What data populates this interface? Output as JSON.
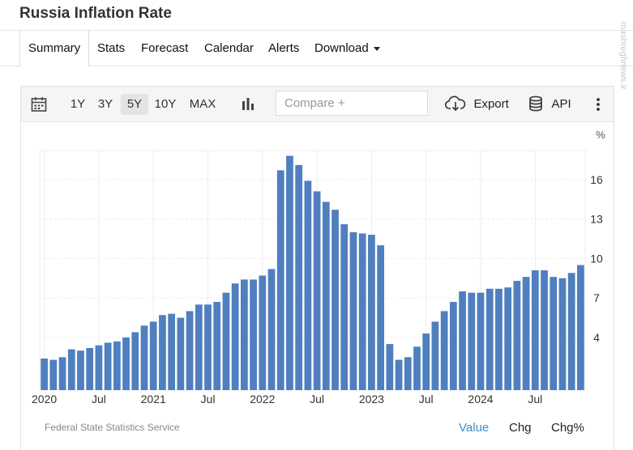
{
  "page": {
    "title": "Russia Inflation Rate",
    "watermark": "mashreghnews.ir"
  },
  "tabs": [
    {
      "label": "Summary",
      "active": true
    },
    {
      "label": "Stats"
    },
    {
      "label": "Forecast"
    },
    {
      "label": "Calendar"
    },
    {
      "label": "Alerts"
    },
    {
      "label": "Download",
      "dropdown": true
    }
  ],
  "toolbar": {
    "ranges": [
      "1Y",
      "3Y",
      "5Y",
      "10Y",
      "MAX"
    ],
    "selected_range": "5Y",
    "compare_placeholder": "Compare +",
    "export_label": "Export",
    "api_label": "API",
    "icons": [
      "calendar-icon",
      "bar-chart-icon",
      "cloud-download-icon",
      "database-icon",
      "more-vertical-icon"
    ]
  },
  "footer": {
    "source": "Federal State Statistics Service",
    "modes": [
      "Value",
      "Chg",
      "Chg%"
    ],
    "active_mode": "Value",
    "active_color": "#3c8dcb"
  },
  "chart_data": {
    "type": "bar",
    "unit_label": "%",
    "bar_color": "#4f7fbf",
    "ylim": [
      0,
      18.2
    ],
    "y_ticks": [
      4,
      7,
      10,
      13,
      16
    ],
    "x_tick_labels": [
      {
        "label": "2020",
        "index": 0
      },
      {
        "label": "Jul",
        "index": 6
      },
      {
        "label": "2021",
        "index": 12
      },
      {
        "label": "Jul",
        "index": 18
      },
      {
        "label": "2022",
        "index": 24
      },
      {
        "label": "Jul",
        "index": 30
      },
      {
        "label": "2023",
        "index": 36
      },
      {
        "label": "Jul",
        "index": 42
      },
      {
        "label": "2024",
        "index": 48
      },
      {
        "label": "Jul",
        "index": 54
      }
    ],
    "categories": [
      "2020-01",
      "2020-02",
      "2020-03",
      "2020-04",
      "2020-05",
      "2020-06",
      "2020-07",
      "2020-08",
      "2020-09",
      "2020-10",
      "2020-11",
      "2020-12",
      "2021-01",
      "2021-02",
      "2021-03",
      "2021-04",
      "2021-05",
      "2021-06",
      "2021-07",
      "2021-08",
      "2021-09",
      "2021-10",
      "2021-11",
      "2021-12",
      "2022-01",
      "2022-02",
      "2022-03",
      "2022-04",
      "2022-05",
      "2022-06",
      "2022-07",
      "2022-08",
      "2022-09",
      "2022-10",
      "2022-11",
      "2022-12",
      "2023-01",
      "2023-02",
      "2023-03",
      "2023-04",
      "2023-05",
      "2023-06",
      "2023-07",
      "2023-08",
      "2023-09",
      "2023-10",
      "2023-11",
      "2023-12",
      "2024-01",
      "2024-02",
      "2024-03",
      "2024-04",
      "2024-05",
      "2024-06",
      "2024-07",
      "2024-08",
      "2024-09",
      "2024-10",
      "2024-11",
      "2024-12"
    ],
    "values": [
      2.4,
      2.3,
      2.5,
      3.1,
      3.0,
      3.2,
      3.4,
      3.6,
      3.7,
      4.0,
      4.4,
      4.9,
      5.2,
      5.7,
      5.8,
      5.5,
      6.0,
      6.5,
      6.5,
      6.7,
      7.4,
      8.1,
      8.4,
      8.4,
      8.7,
      9.2,
      16.7,
      17.8,
      17.1,
      15.9,
      15.1,
      14.3,
      13.7,
      12.6,
      12.0,
      11.9,
      11.8,
      11.0,
      3.5,
      2.3,
      2.5,
      3.3,
      4.3,
      5.2,
      6.0,
      6.7,
      7.5,
      7.4,
      7.4,
      7.7,
      7.7,
      7.8,
      8.3,
      8.6,
      9.1,
      9.1,
      8.6,
      8.5,
      8.9,
      9.5
    ]
  }
}
